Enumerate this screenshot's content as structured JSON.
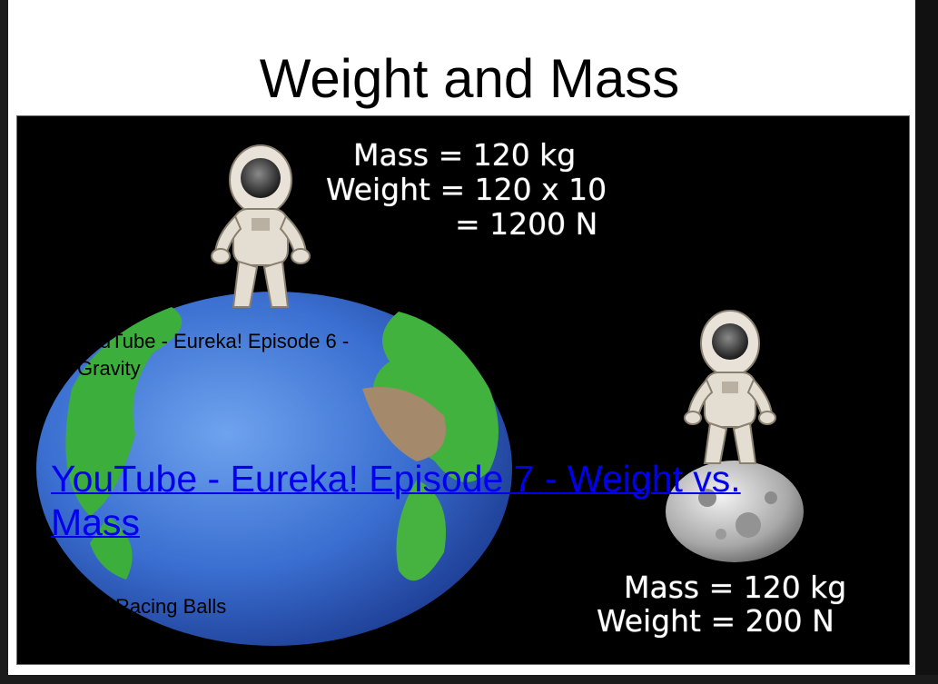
{
  "slide": {
    "title": "Weight and Mass"
  },
  "picture": {
    "earth_caption": {
      "mass": "Mass = 120 kg",
      "weight": "Weight = 120 x 10",
      "result": "= 1200 N"
    },
    "moon_caption": {
      "mass": "Mass = 120 kg",
      "weight": "Weight = 200 N"
    }
  },
  "links": {
    "episode6_line1": "YouTube - Eureka! Episode 6 -",
    "episode6_line2": "Gravity",
    "episode7_line1": "YouTube - Eureka! Episode 7 - Weight vs.",
    "episode7_line2": "Mass",
    "racing_balls": "Racing Balls"
  },
  "colors": {
    "link": "#0000ee",
    "background": "#000000",
    "ocean": "#3f78d6",
    "land": "#3fb03f"
  }
}
